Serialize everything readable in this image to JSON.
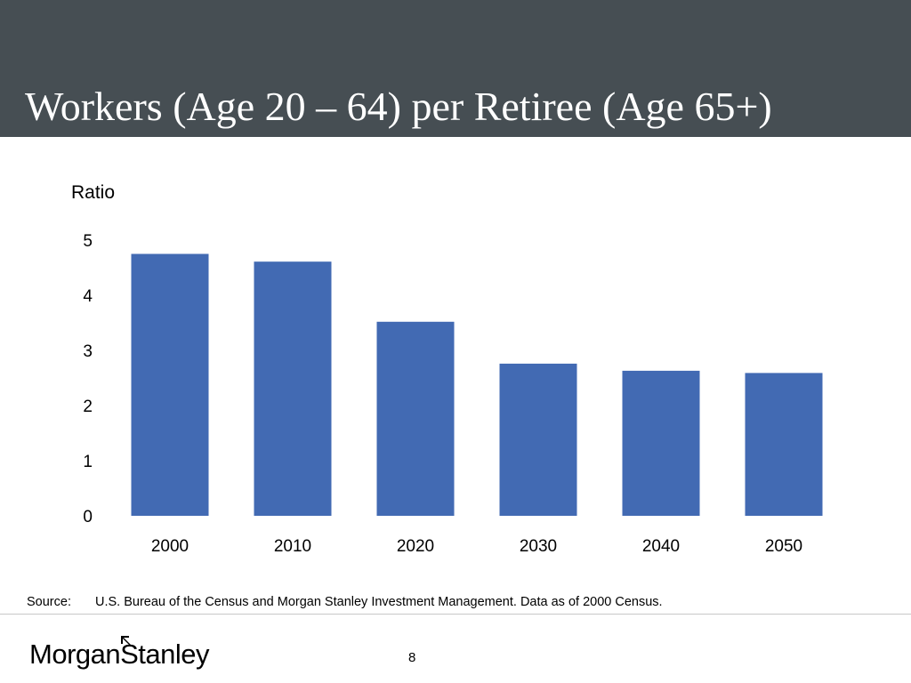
{
  "slide": {
    "title": "Workers (Age 20 – 64) per Retiree (Age 65+)",
    "source_label": "Source:",
    "source_text": "U.S. Bureau of the Census and Morgan Stanley Investment Management. Data as of 2000 Census.",
    "logo_text": "MorganStanley",
    "page_number": "8",
    "colors": {
      "title_band": "#464e53",
      "bar": "#426ab3"
    }
  },
  "chart_data": {
    "type": "bar",
    "title": "",
    "ylabel": "Ratio",
    "xlabel": "",
    "categories": [
      "2000",
      "2010",
      "2020",
      "2030",
      "2040",
      "2050"
    ],
    "values": [
      4.75,
      4.61,
      3.52,
      2.76,
      2.63,
      2.59
    ],
    "ylim": [
      0,
      5
    ],
    "yticks": [
      "0",
      "1",
      "2",
      "3",
      "4",
      "5"
    ],
    "grid": false,
    "legend": "none"
  }
}
